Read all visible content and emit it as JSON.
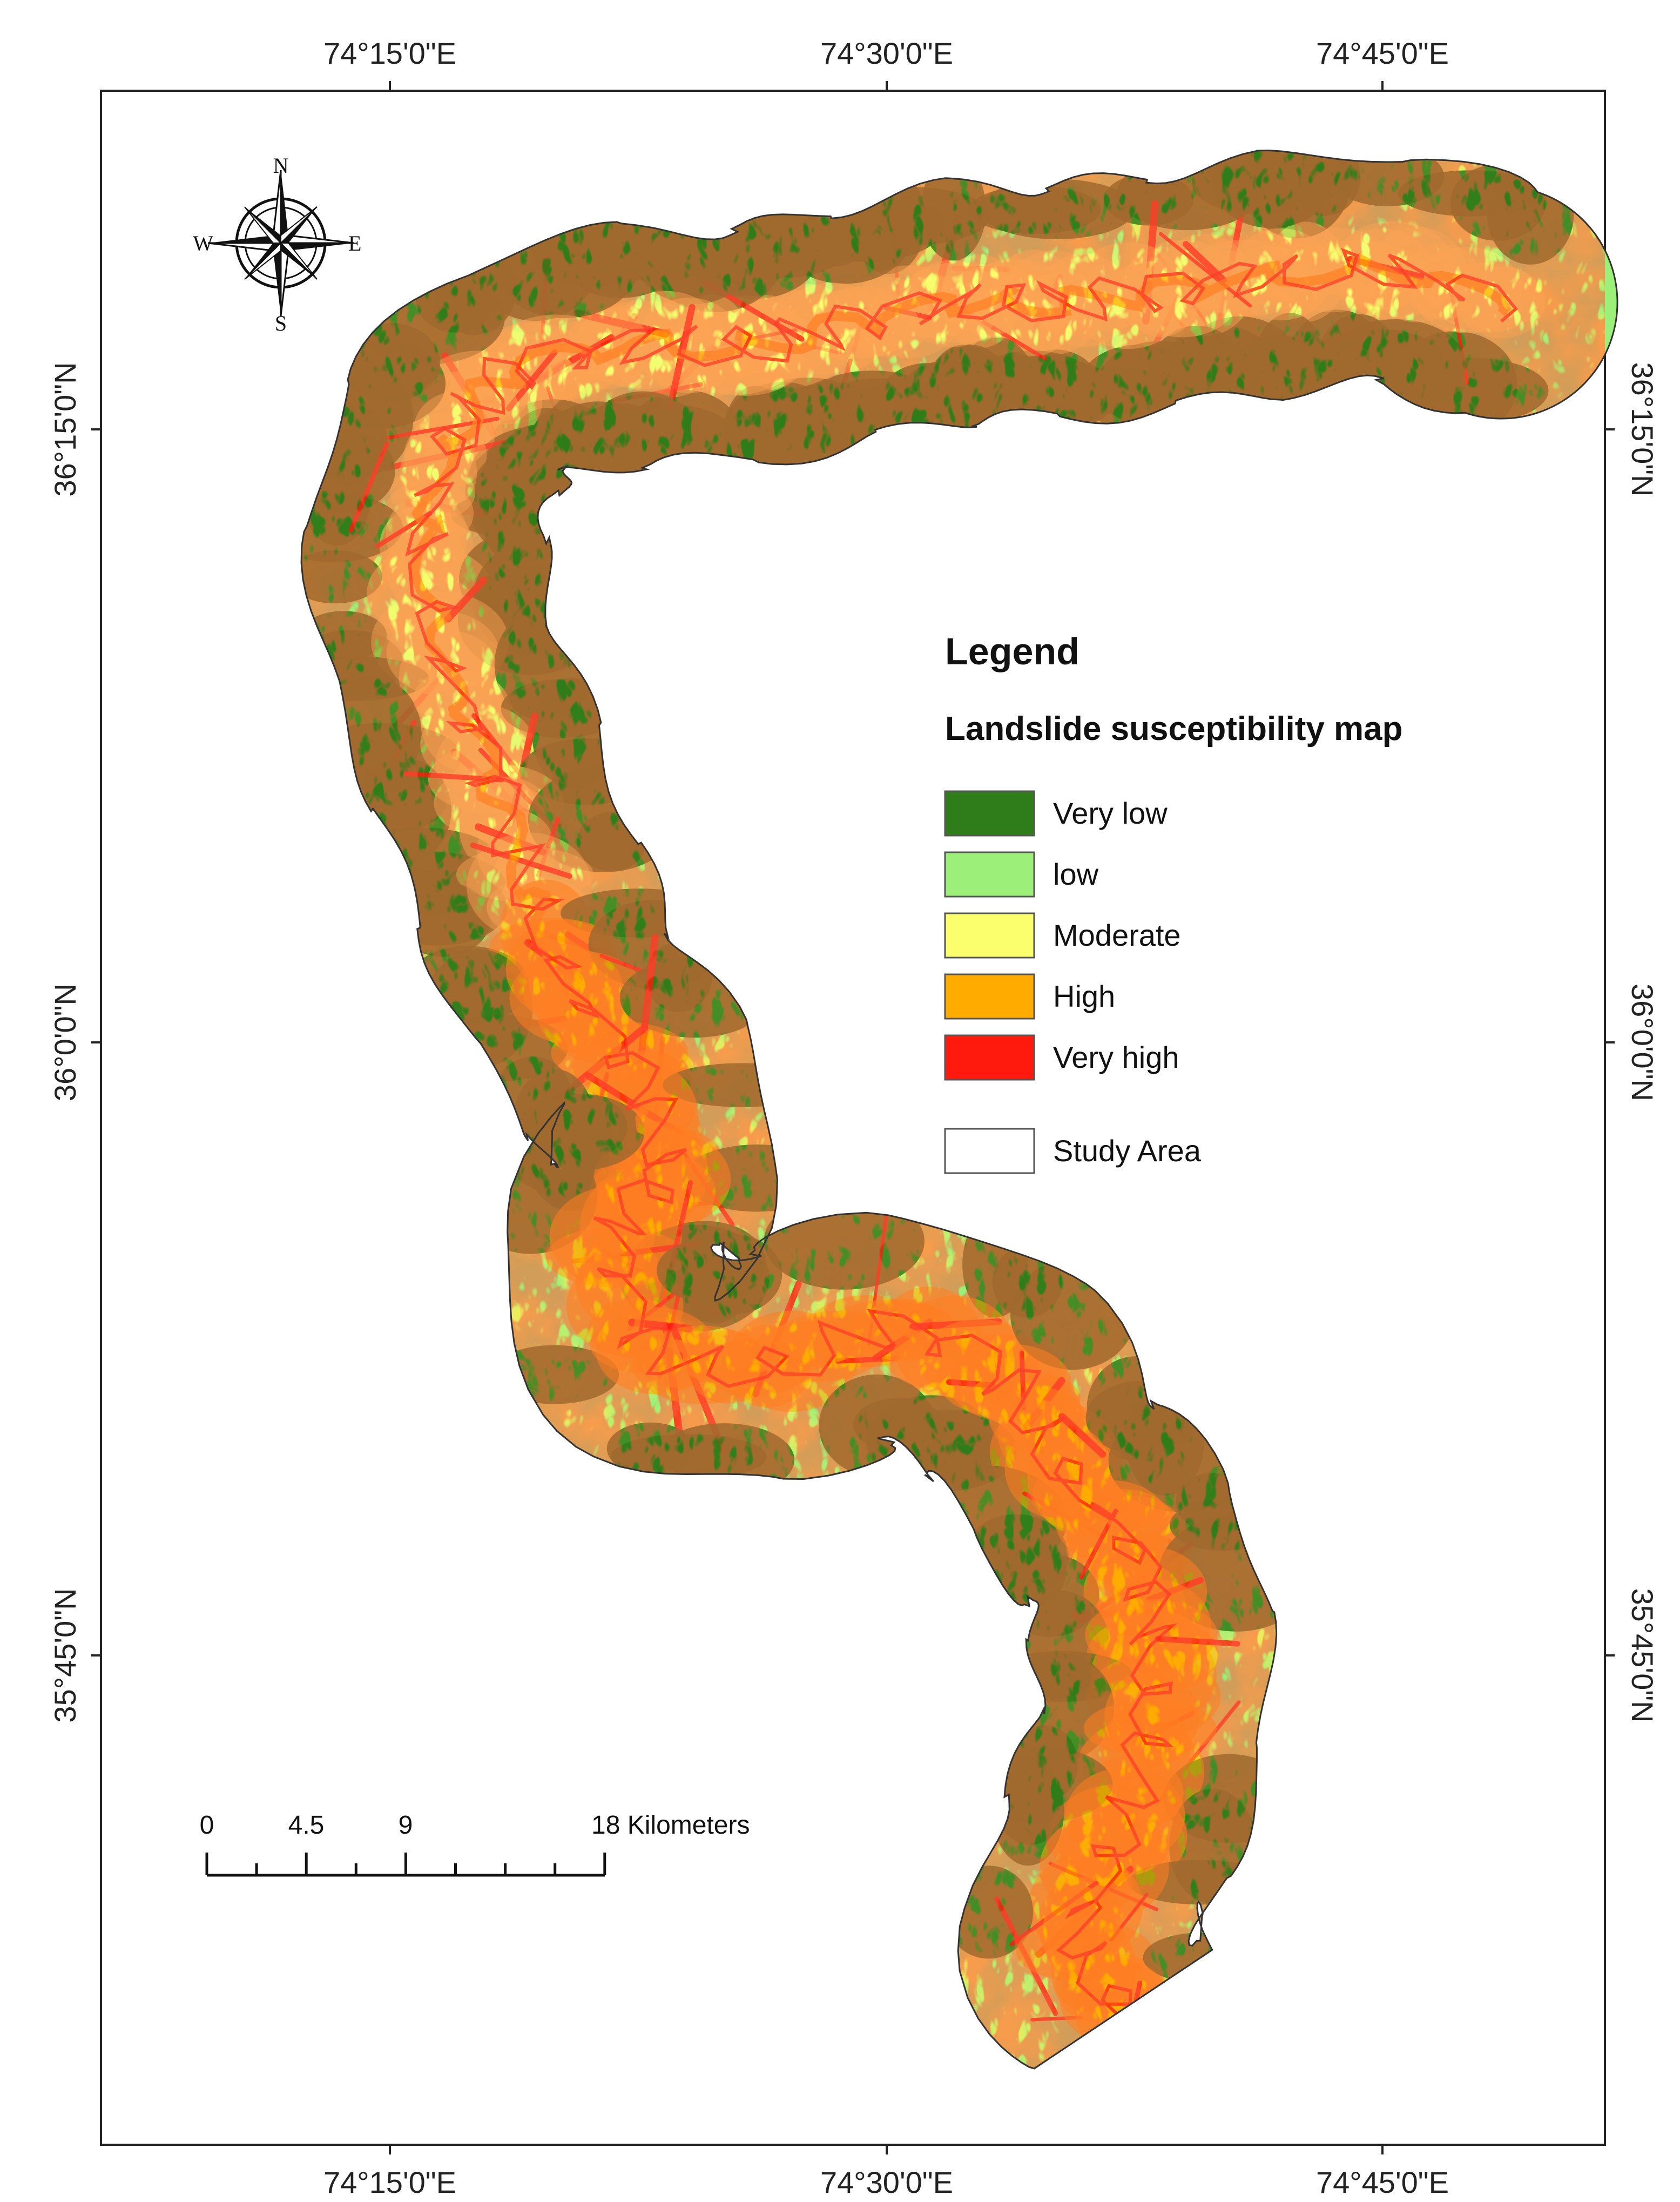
{
  "frame": {
    "top_lon_labels": [
      "74°15'0\"E",
      "74°30'0\"E",
      "74°45'0\"E"
    ],
    "bottom_lon_labels": [
      "74°15'0\"E",
      "74°30'0\"E",
      "74°45'0\"E"
    ],
    "left_lat_labels": [
      "36°15'0\"N",
      "36°0'0\"N",
      "35°45'0\"N"
    ],
    "right_lat_labels": [
      "36°15'0\"N",
      "36°0'0\"N",
      "35°45'0\"N"
    ]
  },
  "compass": {
    "n": "N",
    "s": "S",
    "e": "E",
    "w": "W"
  },
  "legend": {
    "title": "Legend",
    "subtitle": "Landslide susceptibility map",
    "classes": [
      {
        "label": "Very low",
        "color": "#2e7d1a"
      },
      {
        "label": "low",
        "color": "#9cf07a"
      },
      {
        "label": "Moderate",
        "color": "#fbff6e"
      },
      {
        "label": "High",
        "color": "#ffab00"
      },
      {
        "label": "Very high",
        "color": "#ff1a0d"
      }
    ],
    "study_area": {
      "label": "Study Area",
      "color": "#ffffff"
    }
  },
  "scale_bar": {
    "labels": [
      "0",
      "4.5",
      "9",
      "18 Kilometers"
    ]
  }
}
